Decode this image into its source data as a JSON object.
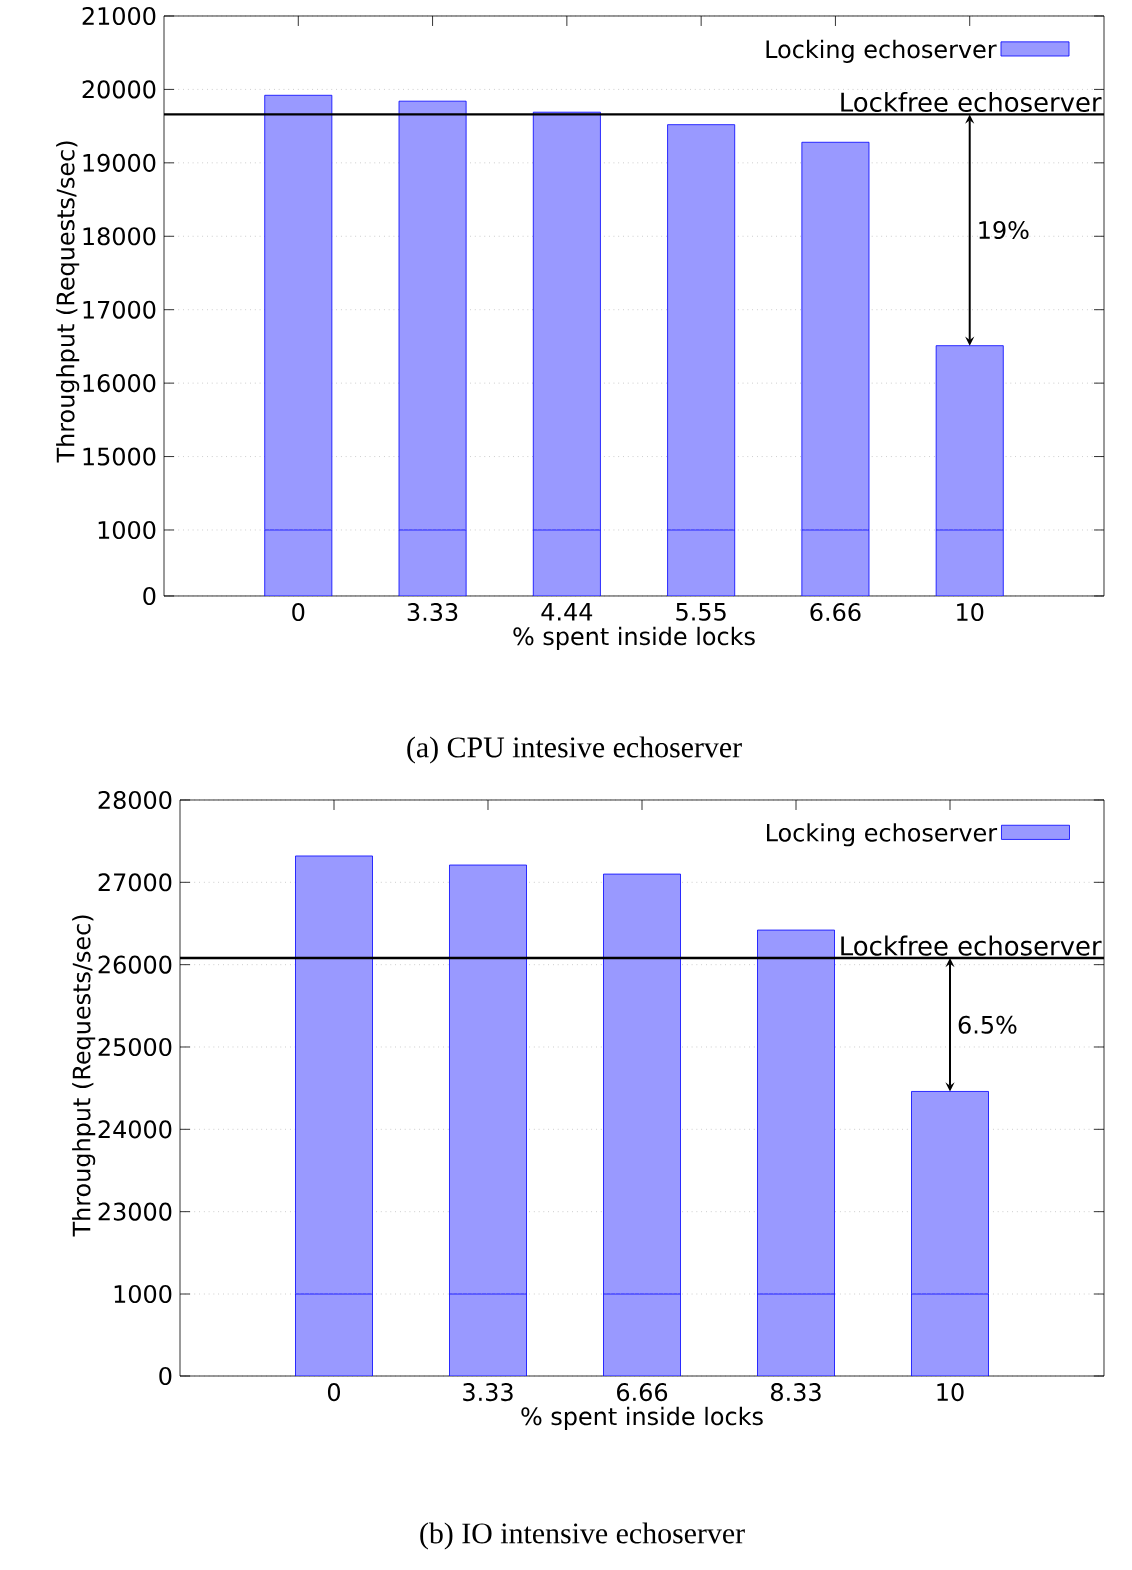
{
  "chart_data": [
    {
      "type": "bar",
      "title": "(a) CPU intesive echoserver",
      "ylabel": "Throughput (Requests/sec)",
      "categories": [
        "0",
        "3.33",
        "4.44",
        "5.55",
        "6.66",
        "10"
      ],
      "series": [
        {
          "name": "Locking echoserver",
          "color": "#0000ff",
          "values": [
            19920,
            19840,
            19690,
            19520,
            19280,
            16510
          ]
        }
      ],
      "ylim": [
        14000,
        21000
      ],
      "yticks": [
        15000,
        16000,
        17000,
        18000,
        19000,
        20000,
        21000
      ],
      "ref_lines": [
        {
          "axis": "y",
          "value": 19660,
          "label": "Lockfree echoserver",
          "color": "#000000"
        }
      ],
      "annotations": [
        "19%"
      ],
      "tick_labels": "y",
      "grid": "y",
      "legend": "top right"
    },
    {
      "type": "bar",
      "xlabel": "% spent inside locks",
      "categories": [
        "0",
        "3.33",
        "4.44",
        "5.55",
        "6.66",
        "10"
      ],
      "series": [
        {
          "color": "#0000ff",
          "values": [
            1000,
            1000,
            1000,
            1000,
            1000,
            1000
          ]
        }
      ],
      "ylim": [
        0,
        1000
      ],
      "yticks": [
        0,
        1000
      ],
      "grid": "y"
    },
    {
      "type": "bar",
      "title": "(b) IO intensive echoserver",
      "ylabel": "Throughput (Requests/sec)",
      "categories": [
        "0",
        "3.33",
        "6.66",
        "8.33",
        "10"
      ],
      "series": [
        {
          "name": "Locking echoserver",
          "color": "#0000ff",
          "values": [
            27320,
            27210,
            27100,
            26420,
            24460
          ]
        }
      ],
      "ylim": [
        22000,
        28000
      ],
      "yticks": [
        23000,
        24000,
        25000,
        26000,
        27000,
        28000
      ],
      "ref_lines": [
        {
          "axis": "y",
          "value": 26080,
          "label": "Lockfree echoserver",
          "color": "#000000"
        }
      ],
      "annotations": [
        "6.5%"
      ],
      "tick_labels": "y",
      "grid": "y",
      "legend": "top right"
    },
    {
      "type": "bar",
      "xlabel": "% spent inside locks",
      "categories": [
        "0",
        "3.33",
        "6.66",
        "8.33",
        "10"
      ],
      "series": [
        {
          "color": "#0000ff",
          "values": [
            1000,
            1000,
            1000,
            1000,
            1000
          ]
        }
      ],
      "ylim": [
        0,
        1000
      ],
      "yticks": [
        0,
        1000
      ],
      "grid": "y"
    }
  ]
}
